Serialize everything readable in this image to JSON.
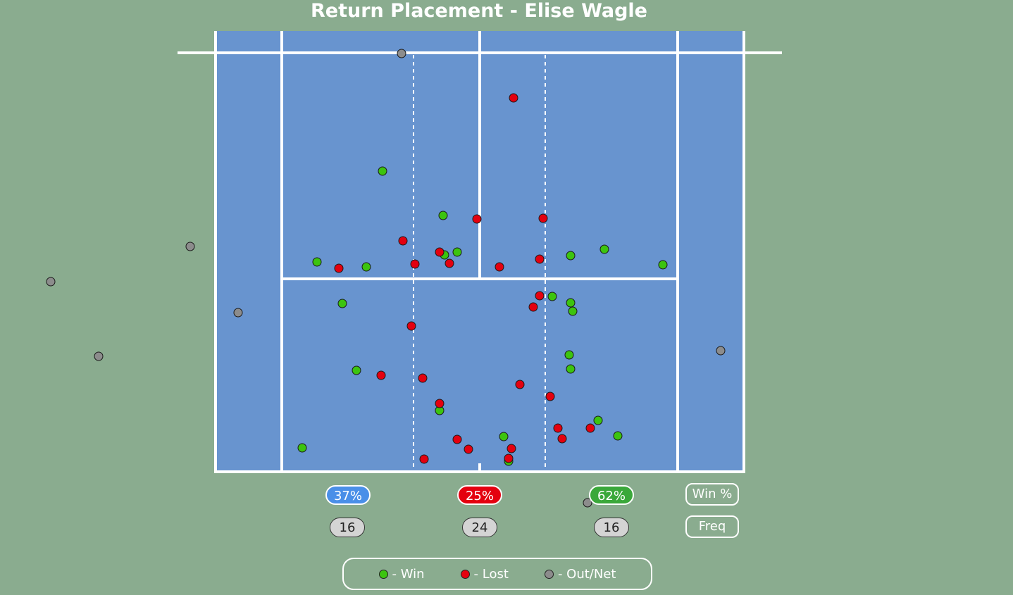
{
  "chart_data": {
    "type": "scatter",
    "title": "Return Placement - Elise Wagle",
    "colors": {
      "court": "#6894cf",
      "background": "#8aac8f",
      "lines": "#ffffff",
      "win": "#3cc40f",
      "lost": "#e4000f",
      "out": "#8c8c8c"
    },
    "zones": [
      {
        "name": "left",
        "win_pct": "37%",
        "freq": "16",
        "color": "#4a8fe8"
      },
      {
        "name": "middle",
        "win_pct": "25%",
        "freq": "24",
        "color": "#e4000f"
      },
      {
        "name": "right",
        "win_pct": "62%",
        "freq": "16",
        "color": "#3aa83a"
      }
    ],
    "row_labels": {
      "win_pct": "Win %",
      "freq": "Freq"
    },
    "legend": [
      {
        "key": "win",
        "label": "- Win"
      },
      {
        "key": "lost",
        "label": "- Lost"
      },
      {
        "key": "out",
        "label": "- Out/Net"
      }
    ],
    "series": [
      {
        "key": "win",
        "points": [
          [
            543,
            243
          ],
          [
            629,
            306
          ],
          [
            649,
            358
          ],
          [
            631,
            362
          ],
          [
            450,
            372
          ],
          [
            520,
            379
          ],
          [
            810,
            363
          ],
          [
            858,
            354
          ],
          [
            941,
            376
          ],
          [
            486,
            431
          ],
          [
            784,
            421
          ],
          [
            810,
            430
          ],
          [
            813,
            442
          ],
          [
            808,
            504
          ],
          [
            810,
            524
          ],
          [
            506,
            526
          ],
          [
            624,
            583
          ],
          [
            849,
            597
          ],
          [
            877,
            619
          ],
          [
            715,
            620
          ],
          [
            429,
            636
          ],
          [
            722,
            655
          ]
        ]
      },
      {
        "key": "lost",
        "points": [
          [
            729,
            139
          ],
          [
            677,
            311
          ],
          [
            771,
            310
          ],
          [
            572,
            342
          ],
          [
            624,
            358
          ],
          [
            638,
            374
          ],
          [
            589,
            375
          ],
          [
            481,
            381
          ],
          [
            709,
            379
          ],
          [
            766,
            368
          ],
          [
            766,
            420
          ],
          [
            757,
            436
          ],
          [
            584,
            463
          ],
          [
            541,
            533
          ],
          [
            600,
            537
          ],
          [
            738,
            546
          ],
          [
            781,
            563
          ],
          [
            624,
            573
          ],
          [
            792,
            608
          ],
          [
            838,
            608
          ],
          [
            798,
            623
          ],
          [
            649,
            624
          ],
          [
            665,
            638
          ],
          [
            726,
            637
          ],
          [
            722,
            651
          ],
          [
            602,
            652
          ]
        ]
      },
      {
        "key": "out",
        "points": [
          [
            570,
            76
          ],
          [
            270,
            350
          ],
          [
            72,
            400
          ],
          [
            338,
            444
          ],
          [
            140,
            506
          ],
          [
            1023,
            498
          ],
          [
            834,
            714
          ]
        ]
      }
    ]
  }
}
